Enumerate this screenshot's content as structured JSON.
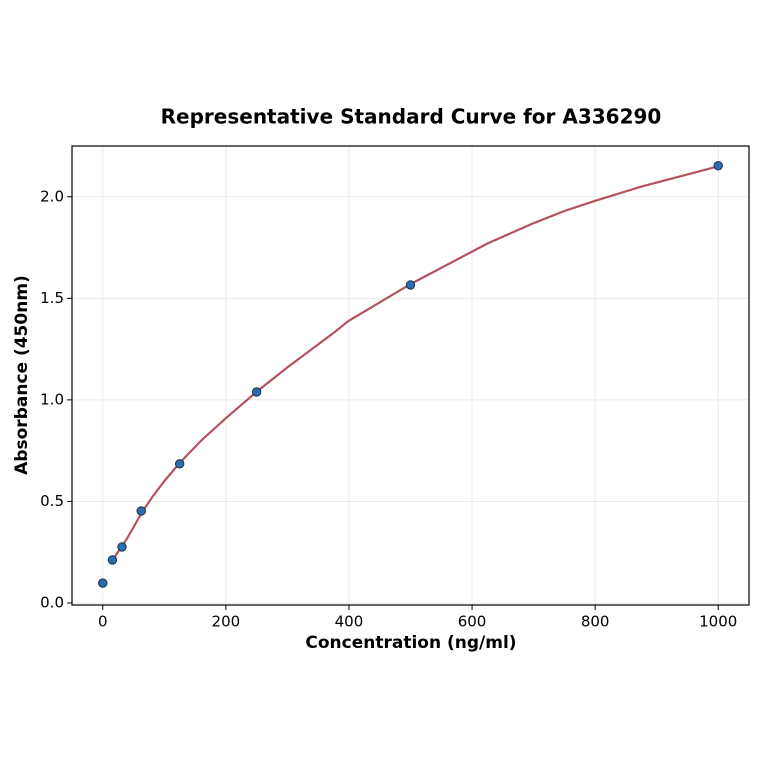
{
  "chart_data": {
    "type": "scatter",
    "title": "Representative Standard Curve for A336290",
    "x_label": "Concentration (ng/ml)",
    "y_label": "Absorbance (450nm)",
    "xlim": [
      -50,
      1050
    ],
    "ylim": [
      -0.01,
      2.25
    ],
    "xticks": [
      0,
      200,
      400,
      600,
      800,
      1000
    ],
    "yticks": [
      {
        "value": 0,
        "label": "0.0"
      },
      0.5,
      {
        "value": 1,
        "label": "1.0"
      },
      1.5,
      {
        "value": 2,
        "label": "2.0"
      }
    ],
    "grid": true,
    "series": [
      {
        "kind": "line",
        "color": "#b5525f",
        "x": [
          15.625,
          20,
          31.25,
          40,
          62.5,
          80,
          100,
          125,
          160,
          200,
          250,
          300,
          375,
          400,
          450,
          500,
          550,
          600,
          625,
          700,
          750,
          800,
          875,
          900,
          950,
          1000
        ],
        "values": [
          0.21,
          0.23,
          0.28,
          0.32,
          0.44,
          0.52,
          0.6,
          0.69,
          0.8,
          0.91,
          1.04,
          1.16,
          1.33,
          1.39,
          1.48,
          1.57,
          1.65,
          1.73,
          1.77,
          1.87,
          1.93,
          1.98,
          2.05,
          2.07,
          2.11,
          2.15
        ]
      },
      {
        "kind": "points",
        "color": "#2a6db0",
        "x": [
          0,
          15.625,
          31.25,
          62.5,
          125,
          250,
          500,
          1000
        ],
        "values": [
          0.098,
          0.212,
          0.276,
          0.453,
          0.685,
          1.039,
          1.566,
          2.153
        ]
      }
    ]
  }
}
